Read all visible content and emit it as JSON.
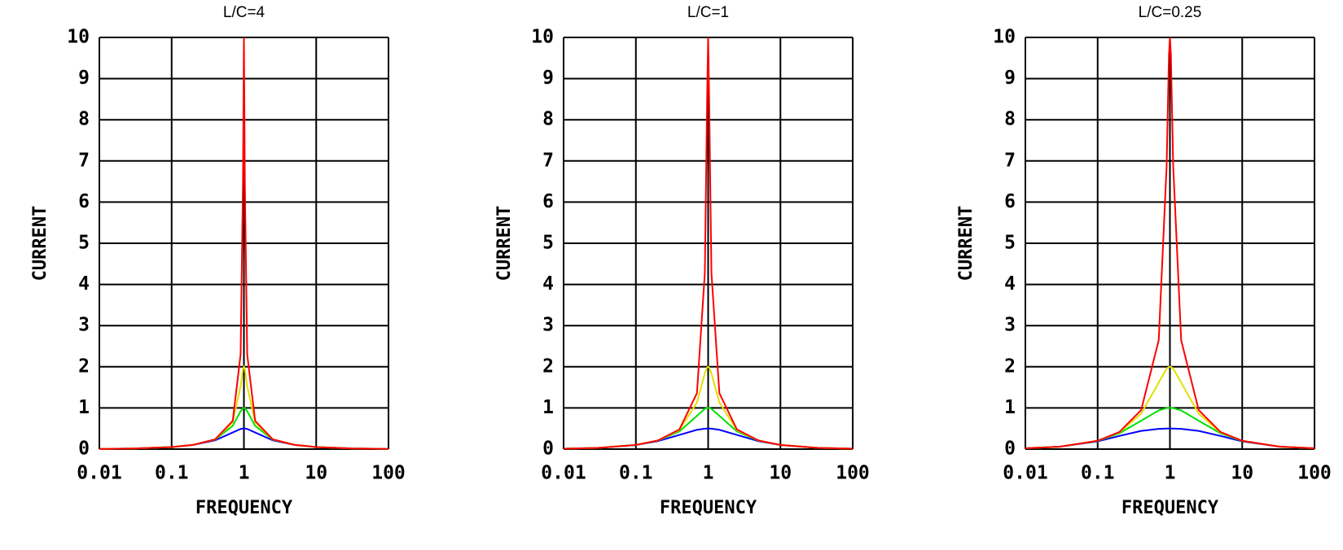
{
  "chart_data": [
    {
      "type": "line",
      "title": "L/C=4",
      "xlabel": "FREQUENCY",
      "ylabel": "CURRENT",
      "log_x": true,
      "grid": true,
      "xlim": [
        0.01,
        100
      ],
      "ylim": [
        0,
        10
      ],
      "xticks": [
        0.01,
        0.1,
        1,
        10,
        100
      ],
      "yticks": [
        0,
        1,
        2,
        3,
        4,
        5,
        6,
        7,
        8,
        9,
        10
      ],
      "x": [
        0.01,
        0.03,
        0.1,
        0.2,
        0.4,
        0.7,
        0.9,
        0.97,
        1,
        1.03,
        1.11,
        1.43,
        2.5,
        5,
        10,
        33,
        100
      ],
      "series": [
        {
          "color": "#0000ff",
          "values": [
            0.005,
            0.015,
            0.0503,
            0.102,
            0.215,
            0.4041,
            0.4892,
            0.4991,
            0.5,
            0.4991,
            0.4892,
            0.4041,
            0.215,
            0.102,
            0.0503,
            0.015,
            0.005
          ]
        },
        {
          "color": "#00e000",
          "values": [
            0.005,
            0.015,
            0.0504,
            0.1036,
            0.2316,
            0.5658,
            0.9212,
            0.9931,
            1,
            0.9931,
            0.9212,
            0.5658,
            0.2316,
            0.1036,
            0.0504,
            0.015,
            0.005
          ]
        },
        {
          "color": "#e0e000",
          "values": [
            0.005,
            0.015,
            0.0505,
            0.104,
            0.2364,
            0.6491,
            1.528,
            1.946,
            2,
            1.946,
            1.528,
            0.6491,
            0.2364,
            0.104,
            0.0505,
            0.015,
            0.005
          ]
        },
        {
          "color": "#ff0000",
          "values": [
            0.005,
            0.015,
            0.0505,
            0.1042,
            0.238,
            0.6846,
            2.304,
            6.459,
            10,
            6.459,
            2.304,
            0.6846,
            0.238,
            0.1042,
            0.0505,
            0.015,
            0.005
          ]
        }
      ]
    },
    {
      "type": "line",
      "title": "L/C=1",
      "xlabel": "FREQUENCY",
      "ylabel": "CURRENT",
      "log_x": true,
      "grid": true,
      "xlim": [
        0.01,
        100
      ],
      "ylim": [
        0,
        10
      ],
      "xticks": [
        0.01,
        0.1,
        1,
        10,
        100
      ],
      "yticks": [
        0,
        1,
        2,
        3,
        4,
        5,
        6,
        7,
        8,
        9,
        10
      ],
      "x": [
        0.01,
        0.03,
        0.1,
        0.2,
        0.4,
        0.7,
        0.9,
        0.97,
        1,
        1.03,
        1.11,
        1.43,
        2.5,
        5,
        10,
        33,
        100
      ],
      "series": [
        {
          "color": "#0000ff",
          "values": [
            0.01,
            0.03,
            0.099,
            0.1923,
            0.3448,
            0.4698,
            0.4972,
            0.4998,
            0.5,
            0.4998,
            0.4972,
            0.4698,
            0.3448,
            0.1923,
            0.099,
            0.03,
            0.01
          ]
        },
        {
          "color": "#00e000",
          "values": [
            0.01,
            0.03,
            0.1005,
            0.204,
            0.4299,
            0.8082,
            0.9784,
            0.9983,
            1,
            0.9983,
            0.9784,
            0.8082,
            0.4299,
            0.204,
            0.1005,
            0.03,
            0.01
          ]
        },
        {
          "color": "#e0e000",
          "values": [
            0.01,
            0.03,
            0.1009,
            0.2072,
            0.4632,
            1.132,
            1.842,
            1.986,
            2,
            1.986,
            1.842,
            1.132,
            0.4632,
            0.2072,
            0.1009,
            0.03,
            0.01
          ]
        },
        {
          "color": "#ff0000",
          "values": [
            0.01,
            0.03,
            0.101,
            0.2083,
            0.4757,
            1.36,
            4.281,
            8.609,
            10,
            8.609,
            4.281,
            1.36,
            0.4757,
            0.2083,
            0.101,
            0.03,
            0.01
          ]
        }
      ]
    },
    {
      "type": "line",
      "title": "L/C=0.25",
      "xlabel": "FREQUENCY",
      "ylabel": "CURRENT",
      "log_x": true,
      "grid": true,
      "xlim": [
        0.01,
        100
      ],
      "ylim": [
        0,
        10
      ],
      "xticks": [
        0.01,
        0.1,
        1,
        10,
        100
      ],
      "yticks": [
        0,
        1,
        2,
        3,
        4,
        5,
        6,
        7,
        8,
        9,
        10
      ],
      "x": [
        0.01,
        0.03,
        0.1,
        0.2,
        0.4,
        0.7,
        0.9,
        0.97,
        1,
        1.03,
        1.11,
        1.43,
        2.5,
        5,
        10,
        33,
        100
      ],
      "series": [
        {
          "color": "#0000ff",
          "values": [
            0.02,
            0.0596,
            0.1873,
            0.3201,
            0.4427,
            0.4919,
            0.4993,
            0.4999,
            0.5,
            0.4999,
            0.4993,
            0.4919,
            0.4427,
            0.3201,
            0.1873,
            0.0596,
            0.02
          ]
        },
        {
          "color": "#00e000",
          "values": [
            0.02,
            0.06,
            0.198,
            0.3846,
            0.6897,
            0.9396,
            0.9945,
            0.9996,
            1,
            0.9996,
            0.9945,
            0.9396,
            0.6897,
            0.3846,
            0.198,
            0.06,
            0.02
          ]
        },
        {
          "color": "#e0e000",
          "values": [
            0.02,
            0.06,
            0.201,
            0.4079,
            0.8599,
            1.616,
            1.957,
            1.9965,
            2,
            1.9965,
            1.957,
            1.616,
            0.8599,
            0.4079,
            0.201,
            0.06,
            0.02
          ]
        },
        {
          "color": "#ff0000",
          "values": [
            0.02,
            0.06,
            0.202,
            0.4163,
            0.9481,
            2.647,
            6.876,
            9.59,
            10,
            9.59,
            6.876,
            2.647,
            0.9481,
            0.4163,
            0.202,
            0.06,
            0.02
          ]
        }
      ]
    }
  ]
}
